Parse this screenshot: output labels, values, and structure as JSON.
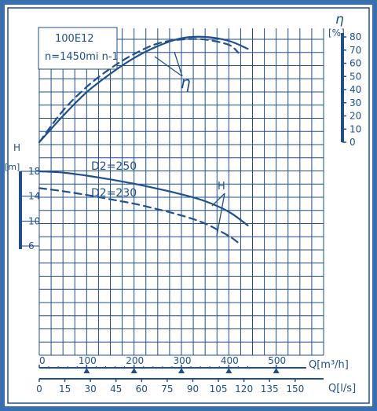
{
  "colors": {
    "frame": "#3a6faf",
    "paper": "#ffffff",
    "ink": "#1f4f8f"
  },
  "chart_data": {
    "type": "line",
    "title": "100E12",
    "subtitle": "n=1450mi n-1",
    "q_axis": {
      "label": "Q[m³/h]",
      "ticks": [
        "0",
        "100",
        "200",
        "300",
        "400",
        "500"
      ],
      "range": [
        0,
        600
      ]
    },
    "ls_axis": {
      "label": "Q[l/s]",
      "ticks": [
        "0",
        "15",
        "30",
        "45",
        "60",
        "75",
        "90",
        "105",
        "120",
        "135",
        "150"
      ]
    },
    "eta_axis": {
      "symbol": "η",
      "unit": "[%]",
      "ticks": [
        "0",
        "10",
        "20",
        "30",
        "40",
        "50",
        "60",
        "70",
        "80"
      ],
      "range": [
        0,
        80
      ]
    },
    "h_axis": {
      "symbol": "H",
      "unit": "[m]",
      "ticks": [
        "6",
        "10",
        "14",
        "18"
      ],
      "range": [
        6,
        18
      ]
    },
    "curve_labels": {
      "eta": "η",
      "h": "H"
    },
    "series": [
      {
        "name": "D2=250",
        "kind": "H",
        "style": "solid",
        "x": [
          0,
          50,
          100,
          150,
          200,
          250,
          300,
          350,
          400,
          440
        ],
        "y": [
          18.0,
          17.8,
          17.3,
          16.7,
          16.0,
          15.2,
          14.3,
          13.2,
          11.5,
          9.3
        ]
      },
      {
        "name": "D2=230",
        "kind": "H",
        "style": "dashed",
        "x": [
          0,
          50,
          100,
          150,
          200,
          250,
          300,
          350,
          400,
          420
        ],
        "y": [
          15.3,
          14.8,
          14.2,
          13.5,
          12.8,
          11.9,
          10.9,
          9.6,
          7.6,
          6.5
        ]
      },
      {
        "name": "",
        "kind": "eta",
        "style": "solid",
        "x": [
          0,
          50,
          100,
          150,
          200,
          250,
          300,
          350,
          400,
          440
        ],
        "y": [
          0,
          20,
          38,
          52,
          64,
          73,
          79,
          80,
          77,
          71
        ]
      },
      {
        "name": "",
        "kind": "eta",
        "style": "dashed",
        "x": [
          0,
          50,
          100,
          150,
          200,
          250,
          300,
          350,
          400,
          420
        ],
        "y": [
          0,
          24,
          42,
          56,
          67,
          75,
          78,
          78,
          74,
          68
        ]
      }
    ]
  }
}
